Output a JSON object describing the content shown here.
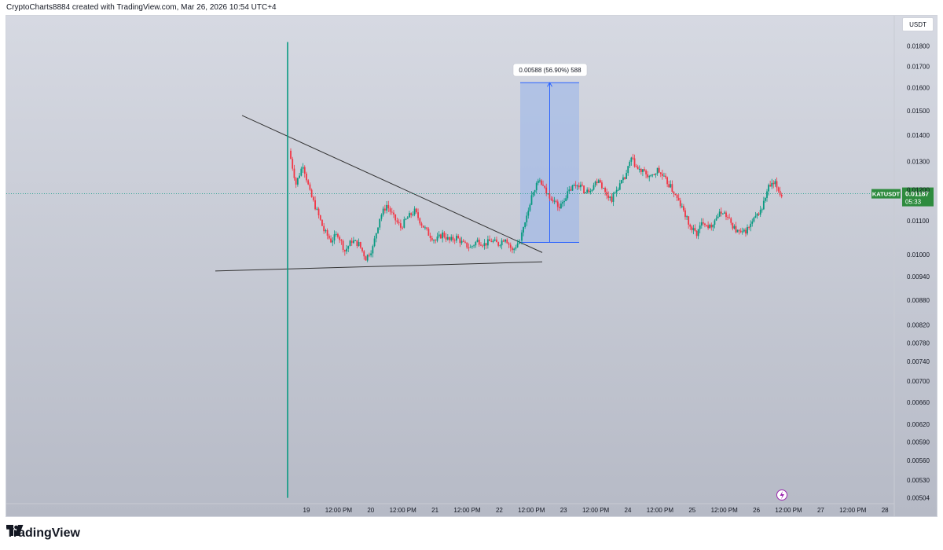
{
  "header": {
    "attribution": "CryptoCharts8884 created with TradingView.com, Mar 26, 2026 10:54 UTC+4"
  },
  "currency_label": "USDT",
  "footer": {
    "brand": "TradingView"
  },
  "colors": {
    "up": "#089981",
    "down": "#f23645",
    "bg_top": "#d6d9e2",
    "bg_bottom": "#b6bac6",
    "measure_fill": "#9fb8e8",
    "measure_line": "#2962ff",
    "trend_line": "#333333",
    "symbol_badge": "#2e8b3e"
  },
  "ticker": {
    "symbol": "KATUSDT",
    "price": "0.01187",
    "countdown": "05:33"
  },
  "measure": {
    "label": "0.00588 (56.90%) 588"
  },
  "chart_data": {
    "type": "candlestick",
    "title": "",
    "y_axis": {
      "scale": "log",
      "range": [
        0.00497,
        0.0196
      ],
      "ticks": [
        0.018,
        0.017,
        0.016,
        0.015,
        0.014,
        0.013,
        0.012,
        0.011,
        0.01,
        0.0094,
        0.0088,
        0.0082,
        0.0078,
        0.0074,
        0.007,
        0.0066,
        0.0062,
        0.0059,
        0.0056,
        0.0053,
        0.00504
      ]
    },
    "x_axis": {
      "labels": [
        "19",
        "12:00 PM",
        "20",
        "12:00 PM",
        "21",
        "12:00 PM",
        "22",
        "12:00 PM",
        "23",
        "12:00 PM",
        "24",
        "12:00 PM",
        "25",
        "12:00 PM",
        "26",
        "12:00 PM",
        "27",
        "12:00 PM",
        "28"
      ]
    },
    "current_price": 0.01187,
    "first_candle": {
      "open": 0.00504,
      "high": 0.0182,
      "low": 0.00504,
      "close": 0.0134
    },
    "series_path": [
      [
        0.0134,
        0.0122,
        0.0129,
        0.0119,
        0.0113,
        0.0107,
        0.0104,
        0.0106,
        0.0101,
        0.0104,
        0.0103,
        0.0099,
        0.0102,
        0.0111,
        0.0115,
        0.0111,
        0.0108,
        0.0111,
        0.0113,
        0.0109,
        0.0106,
        0.0104,
        0.0106,
        0.0104,
        0.0105,
        0.0103,
        0.0102,
        0.0104,
        0.0103,
        0.0104,
        0.0103,
        0.0105,
        0.0101,
        0.0104
      ]
    ],
    "measure_range": {
      "from": 0.01035,
      "to": 0.01623,
      "change": 0.00588,
      "percent": 56.9
    },
    "post_breakout": [
      [
        0.0104,
        0.0112,
        0.012,
        0.0123,
        0.0119,
        0.0117,
        0.0114,
        0.0118,
        0.0121,
        0.0122,
        0.0119,
        0.0121,
        0.0124,
        0.0119,
        0.0117,
        0.0121,
        0.0124,
        0.0131,
        0.0127,
        0.0126,
        0.0124,
        0.0127,
        0.0124,
        0.0121,
        0.0117,
        0.0113,
        0.0108,
        0.0106,
        0.011,
        0.0108,
        0.0111,
        0.0113,
        0.011,
        0.0107,
        0.0106,
        0.0108,
        0.0111,
        0.0114,
        0.0121,
        0.0122,
        0.0118
      ]
    ],
    "trendlines": [
      {
        "role": "resistance",
        "from": [
          0,
          0.0148
        ],
        "to": [
          1,
          0.01006
        ]
      },
      {
        "role": "support",
        "from": [
          0,
          0.00955
        ],
        "to": [
          1,
          0.0098
        ]
      }
    ]
  }
}
